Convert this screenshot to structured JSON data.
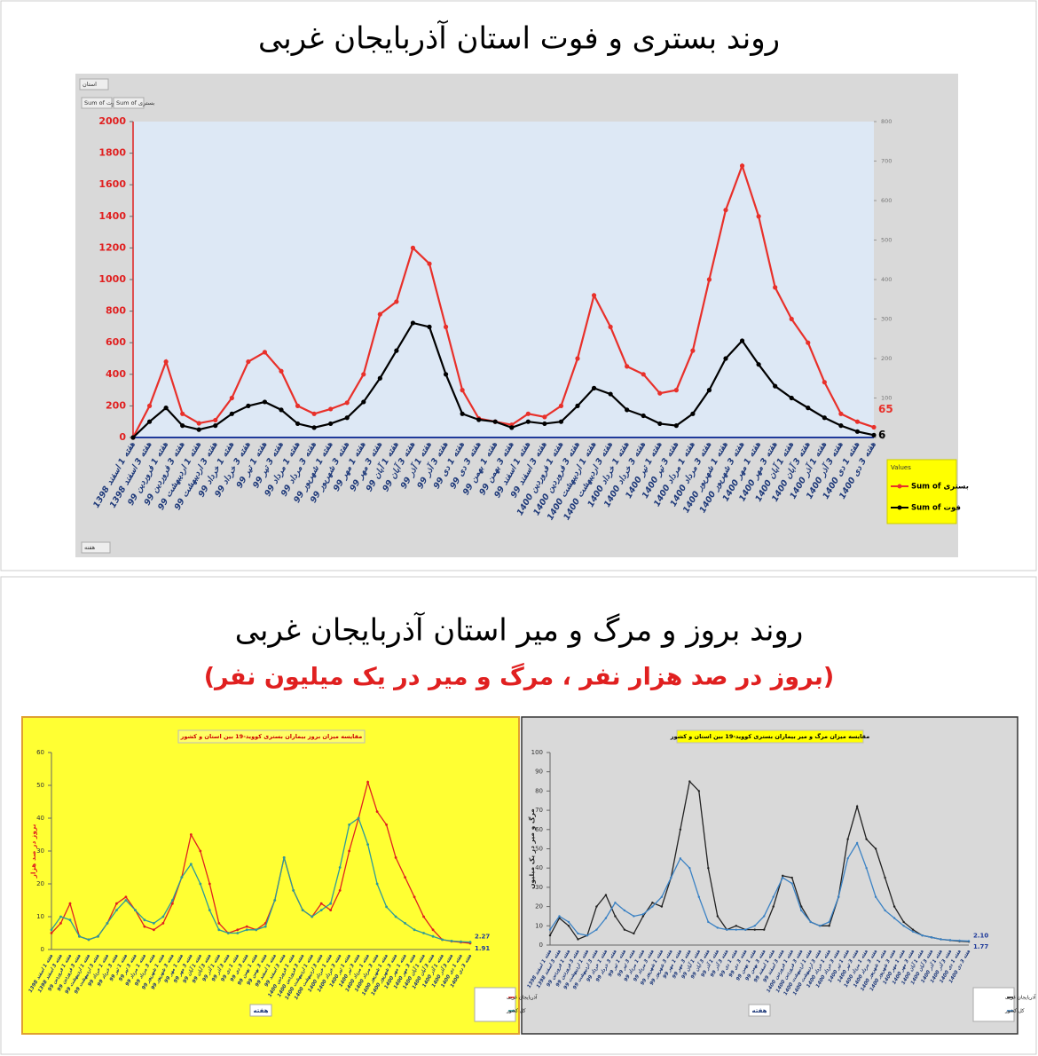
{
  "heading": {
    "title": "روند بروز و مرگ و میر استان آذربایجان غربی",
    "subtitle": "(بروز در صد هزار نفر ، مرگ و میر در یک میلیون نفر)"
  },
  "chart_data": [
    {
      "type": "line",
      "title": "روند بستری و فوت استان آذربایجان غربی",
      "field_buttons": [
        "استان",
        "Sum of فوت",
        "Sum of بستری",
        "هفته"
      ],
      "legend_title": "Values",
      "legend": "right",
      "categories": [
        "هفته 1 اسفند 1398",
        "هفته 3 اسفند 1398",
        "هفته 1 فروردین 99",
        "هفته 3 فروردین 99",
        "هفته 1 اردیبهشت 99",
        "هفته 3 اردیبهشت 99",
        "هفته 1 خرداد 99",
        "هفته 3 خرداد 99",
        "هفته 1 تیر 99",
        "هفته 3 تیر 99",
        "هفته 1 مرداد 99",
        "هفته 3 مرداد 99",
        "هفته 1 شهریور 99",
        "هفته 3 شهریور 99",
        "هفته 1 مهر 99",
        "هفته 3 مهر 99",
        "هفته 1 آبان 99",
        "هفته 3 آبان 99",
        "هفته 1 آذر 99",
        "هفته 3 آذر 99",
        "هفته 1 دی 99",
        "هفته 3 دی 99",
        "هفته 1 بهمن 99",
        "هفته 3 بهمن 99",
        "هفته 1 اسفند 99",
        "هفته 3 اسفند 99",
        "هفته 1 فروردین 1400",
        "هفته 3 فروردین 1400",
        "هفته 1 اردیبهشت 1400",
        "هفته 3 اردیبهشت 1400",
        "هفته 1 خرداد 1400",
        "هفته 3 خرداد 1400",
        "هفته 1 تیر 1400",
        "هفته 3 تیر 1400",
        "هفته 1 مرداد 1400",
        "هفته 3 مرداد 1400",
        "هفته 1 شهریور 1400",
        "هفته 3 شهریور 1400",
        "هفته 1 مهر 1400",
        "هفته 3 مهر 1400",
        "هفته 1 آبان 1400",
        "هفته 3 آبان 1400",
        "هفته 1 آذر 1400",
        "هفته 3 آذر 1400",
        "هفته 1 دی 1400",
        "هفته 3 دی 1400"
      ],
      "series": [
        {
          "name": "Sum of بستری",
          "color": "#e8302a",
          "values": [
            0,
            200,
            480,
            150,
            90,
            110,
            250,
            480,
            540,
            420,
            200,
            150,
            180,
            220,
            400,
            780,
            860,
            1200,
            1100,
            700,
            300,
            120,
            100,
            80,
            150,
            130,
            200,
            500,
            900,
            700,
            450,
            400,
            280,
            300,
            550,
            1000,
            1440,
            1720,
            1400,
            950,
            750,
            600,
            350,
            150,
            100,
            65
          ]
        },
        {
          "name": "Sum of فوت",
          "color": "#000000",
          "axis": "y2",
          "values": [
            0,
            40,
            75,
            30,
            20,
            30,
            60,
            80,
            90,
            70,
            35,
            25,
            35,
            50,
            90,
            150,
            220,
            290,
            280,
            160,
            60,
            45,
            40,
            25,
            40,
            35,
            40,
            80,
            125,
            110,
            70,
            55,
            35,
            30,
            60,
            120,
            200,
            245,
            185,
            130,
            100,
            75,
            50,
            30,
            15,
            6
          ]
        }
      ],
      "ylim": [
        0,
        2000
      ],
      "yticks": [
        0,
        200,
        400,
        600,
        800,
        1000,
        1200,
        1400,
        1600,
        1800,
        2000
      ],
      "y2lim": [
        0,
        800
      ],
      "y2ticks": [
        0,
        100,
        200,
        300,
        400,
        500,
        600,
        700,
        800
      ]
    },
    {
      "type": "line",
      "title": "مقایسه میزان بروز بیماران بستری کووید-19 بین استان و کشور",
      "ylabel": "بروز در صد هزار",
      "xlabel": "هفته",
      "legend": "bottom-right",
      "categories": [
        "هفته 1 اسفند 1398",
        "هفته 3 اسفند 1398",
        "هفته 1 فروردین 99",
        "هفته 3 فروردین 99",
        "هفته 1 اردیبهشت 99",
        "هفته 3 اردیبهشت 99",
        "هفته 1 خرداد 99",
        "هفته 3 خرداد 99",
        "هفته 1 تیر 99",
        "هفته 3 تیر 99",
        "هفته 1 مرداد 99",
        "هفته 3 مرداد 99",
        "هفته 1 شهریور 99",
        "هفته 3 شهریور 99",
        "هفته 1 مهر 99",
        "هفته 3 مهر 99",
        "هفته 1 آبان 99",
        "هفته 3 آبان 99",
        "هفته 1 آذر 99",
        "هفته 3 آذر 99",
        "هفته 1 دی 99",
        "هفته 3 دی 99",
        "هفته 1 بهمن 99",
        "هفته 3 بهمن 99",
        "هفته 1 اسفند 99",
        "هفته 3 اسفند 99",
        "هفته 1 فروردین 1400",
        "هفته 3 فروردین 1400",
        "هفته 1 اردیبهشت 1400",
        "هفته 3 اردیبهشت 1400",
        "هفته 1 خرداد 1400",
        "هفته 3 خرداد 1400",
        "هفته 1 تیر 1400",
        "هفته 3 تیر 1400",
        "هفته 1 مرداد 1400",
        "هفته 3 مرداد 1400",
        "هفته 1 شهریور 1400",
        "هفته 3 شهریور 1400",
        "هفته 1 مهر 1400",
        "هفته 3 مهر 1400",
        "هفته 1 آبان 1400",
        "هفته 3 آبان 1400",
        "هفته 1 آذر 1400",
        "هفته 3 آذر 1400",
        "هفته 1 دی 1400",
        "هفته 3 دی 1400"
      ],
      "series": [
        {
          "name": "آذربایجان غربی",
          "color": "#e02020",
          "values": [
            5,
            8,
            14,
            4,
            3,
            4,
            8,
            14,
            16,
            12,
            7,
            6,
            8,
            14,
            22,
            35,
            30,
            20,
            8,
            5,
            6,
            7,
            6,
            8,
            15,
            28,
            18,
            12,
            10,
            14,
            12,
            18,
            30,
            40,
            51,
            42,
            38,
            28,
            22,
            16,
            10,
            6,
            3,
            2.5,
            2.2,
            1.91
          ]
        },
        {
          "name": "کل کشور",
          "color": "#2e9a9a",
          "values": [
            6,
            10,
            9,
            4,
            3,
            4,
            8,
            12,
            15,
            12,
            9,
            8,
            10,
            15,
            22,
            26,
            20,
            12,
            6,
            5,
            5,
            6,
            6,
            7,
            15,
            28,
            18,
            12,
            10,
            12,
            14,
            25,
            38,
            40,
            32,
            20,
            13,
            10,
            8,
            6,
            5,
            4,
            3,
            2.6,
            2.4,
            2.27
          ]
        }
      ],
      "ylim": [
        0,
        60
      ],
      "yticks": [
        0,
        10,
        20,
        30,
        40,
        50,
        60
      ]
    },
    {
      "type": "line",
      "title": "مقایسه میزان مرگ و میر بیماران بستری کووید-19 بین استان و کشور",
      "ylabel": "مرگ و میر در یک میلیون",
      "xlabel": "هفته",
      "legend": "bottom-right",
      "categories": [
        "هفته 1 اسفند 1398",
        "هفته 3 اسفند 1398",
        "هفته 1 فروردین 99",
        "هفته 3 فروردین 99",
        "هفته 1 اردیبهشت 99",
        "هفته 3 اردیبهشت 99",
        "هفته 1 خرداد 99",
        "هفته 3 خرداد 99",
        "هفته 1 تیر 99",
        "هفته 3 تیر 99",
        "هفته 1 مرداد 99",
        "هفته 3 مرداد 99",
        "هفته 1 شهریور 99",
        "هفته 3 شهریور 99",
        "هفته 1 مهر 99",
        "هفته 3 مهر 99",
        "هفته 1 آبان 99",
        "هفته 3 آبان 99",
        "هفته 1 آذر 99",
        "هفته 3 آذر 99",
        "هفته 1 دی 99",
        "هفته 3 دی 99",
        "هفته 1 بهمن 99",
        "هفته 3 بهمن 99",
        "هفته 1 اسفند 99",
        "هفته 3 اسفند 99",
        "هفته 1 فروردین 1400",
        "هفته 3 فروردین 1400",
        "هفته 1 اردیبهشت 1400",
        "هفته 3 اردیبهشت 1400",
        "هفته 1 خرداد 1400",
        "هفته 3 خرداد 1400",
        "هفته 1 تیر 1400",
        "هفته 3 تیر 1400",
        "هفته 1 مرداد 1400",
        "هفته 3 مرداد 1400",
        "هفته 1 شهریور 1400",
        "هفته 3 شهریور 1400",
        "هفته 1 مهر 1400",
        "هفته 3 مهر 1400",
        "هفته 1 آبان 1400",
        "هفته 3 آبان 1400",
        "هفته 1 آذر 1400",
        "هفته 3 آذر 1400",
        "هفته 1 دی 1400",
        "هفته 3 دی 1400"
      ],
      "series": [
        {
          "name": "آذربایجان غربی",
          "color": "#222222",
          "values": [
            5,
            14,
            10,
            3,
            5,
            20,
            26,
            15,
            8,
            6,
            15,
            22,
            20,
            35,
            60,
            85,
            80,
            40,
            15,
            8,
            10,
            8,
            8,
            8,
            20,
            36,
            35,
            20,
            12,
            10,
            10,
            25,
            55,
            72,
            55,
            50,
            35,
            20,
            12,
            8,
            5,
            4,
            3,
            2.5,
            2.0,
            1.77
          ]
        },
        {
          "name": "کل کشور",
          "color": "#3b82c4",
          "values": [
            8,
            15,
            12,
            6,
            5,
            8,
            14,
            22,
            18,
            15,
            16,
            20,
            25,
            35,
            45,
            40,
            25,
            12,
            9,
            8,
            8,
            8,
            10,
            15,
            25,
            35,
            32,
            18,
            12,
            10,
            12,
            25,
            45,
            53,
            40,
            25,
            18,
            14,
            10,
            7,
            5,
            4,
            3,
            2.6,
            2.3,
            2.1
          ],
          "value_labels": [
            null,
            null,
            null,
            null,
            null,
            null,
            null,
            null,
            null,
            null,
            null,
            null,
            null,
            null,
            null,
            null,
            null,
            null,
            null,
            null,
            null,
            null,
            null,
            null,
            null,
            null,
            null,
            null,
            null,
            null,
            null,
            null,
            null,
            null,
            null,
            null,
            null,
            null,
            null,
            null,
            null,
            null,
            null,
            null,
            null,
            "2.10"
          ]
        }
      ],
      "ylim": [
        0,
        100
      ],
      "yticks": [
        0,
        10,
        20,
        30,
        40,
        50,
        60,
        70,
        80,
        90,
        100
      ]
    }
  ]
}
